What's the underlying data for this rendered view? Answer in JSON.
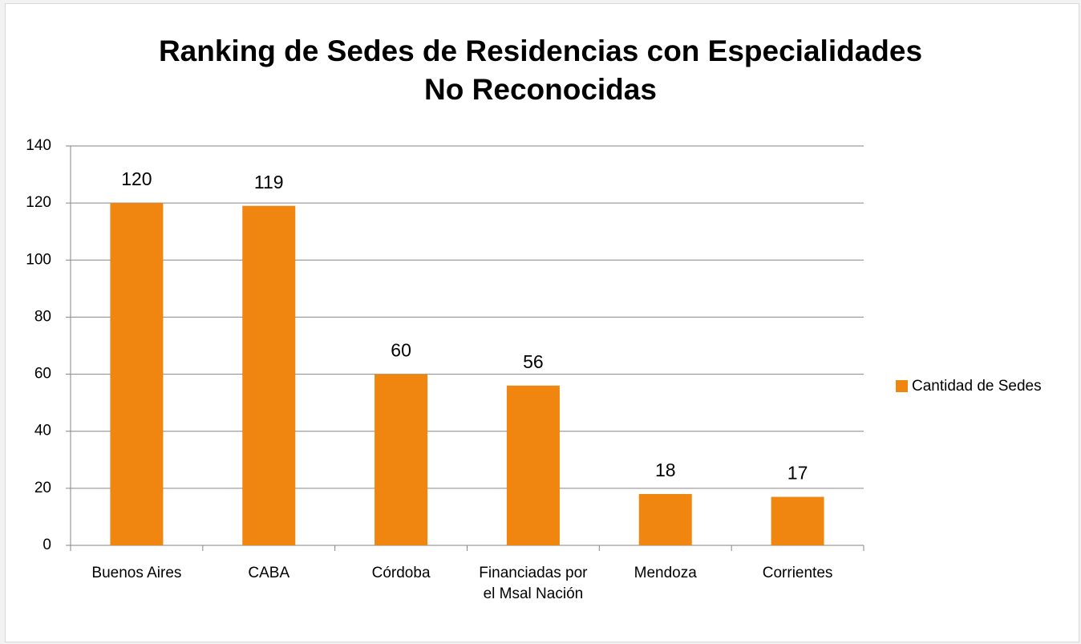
{
  "chart_data": {
    "type": "bar",
    "title": "Ranking de Sedes de Residencias con Especialidades No Reconocidas",
    "categories": [
      "Buenos Aires",
      "CABA",
      "Córdoba",
      "Financiadas por el Msal Nación",
      "Mendoza",
      "Corrientes"
    ],
    "series": [
      {
        "name": "Cantidad de Sedes",
        "color": "#f0850f",
        "values": [
          120,
          119,
          60,
          56,
          18,
          17
        ]
      }
    ],
    "ylim": [
      0,
      140
    ],
    "yticks": [
      0,
      20,
      40,
      60,
      80,
      100,
      120,
      140
    ],
    "grid": true,
    "legend": "right"
  }
}
